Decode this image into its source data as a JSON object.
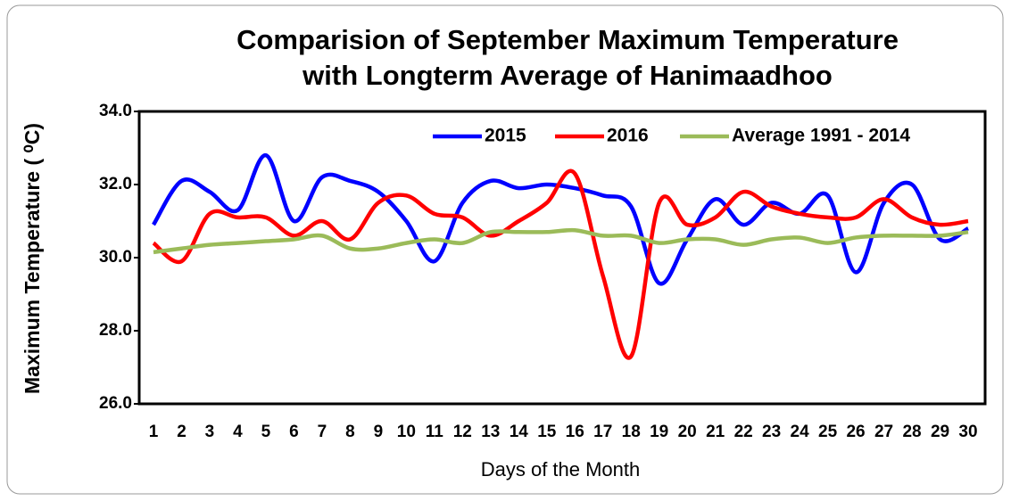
{
  "chart_data": {
    "type": "line",
    "title": [
      "Comparision of September Maximum Temperature",
      "with Longterm Average of Hanimaadhoo"
    ],
    "x_label": "Days of the Month",
    "y_label": "Maximum Temperature ( ⁰C)",
    "categories": [
      "1",
      "2",
      "3",
      "4",
      "5",
      "6",
      "7",
      "8",
      "9",
      "10",
      "11",
      "12",
      "13",
      "14",
      "15",
      "16",
      "17",
      "18",
      "19",
      "20",
      "21",
      "22",
      "23",
      "24",
      "25",
      "26",
      "27",
      "28",
      "29",
      "30"
    ],
    "series": [
      {
        "name": "2015",
        "color": "#0000ff",
        "values": [
          30.9,
          32.1,
          31.8,
          31.3,
          32.8,
          31.0,
          32.2,
          32.1,
          31.8,
          31.0,
          29.9,
          31.5,
          32.1,
          31.9,
          32.0,
          31.9,
          31.7,
          31.4,
          29.3,
          30.5,
          31.6,
          30.9,
          31.5,
          31.2,
          31.7,
          29.6,
          31.5,
          32.0,
          30.5,
          30.8
        ]
      },
      {
        "name": "2016",
        "color": "#ff0000",
        "values": [
          30.4,
          29.9,
          31.2,
          31.1,
          31.1,
          30.6,
          31.0,
          30.5,
          31.5,
          31.7,
          31.2,
          31.1,
          30.6,
          31.0,
          31.5,
          32.3,
          29.5,
          27.3,
          31.5,
          30.9,
          31.1,
          31.8,
          31.4,
          31.2,
          31.1,
          31.1,
          31.6,
          31.1,
          30.9,
          31.0
        ]
      },
      {
        "name": "Average 1991 - 2014",
        "color": "#9bbb59",
        "values": [
          30.15,
          30.25,
          30.35,
          30.4,
          30.45,
          30.5,
          30.6,
          30.25,
          30.25,
          30.4,
          30.5,
          30.4,
          30.7,
          30.7,
          30.7,
          30.75,
          30.6,
          30.6,
          30.4,
          30.5,
          30.5,
          30.35,
          30.5,
          30.55,
          30.4,
          30.55,
          30.6,
          30.6,
          30.6,
          30.7
        ]
      }
    ],
    "ylim": [
      26,
      34
    ],
    "yticks": [
      {
        "value": 26,
        "label": "26.0"
      },
      {
        "value": 28,
        "label": "28.0"
      },
      {
        "value": 30,
        "label": "30.0"
      },
      {
        "value": 32,
        "label": "32.0"
      },
      {
        "value": 34,
        "label": "34.0"
      }
    ],
    "legend": "upper right",
    "grid": false,
    "smooth": true
  }
}
